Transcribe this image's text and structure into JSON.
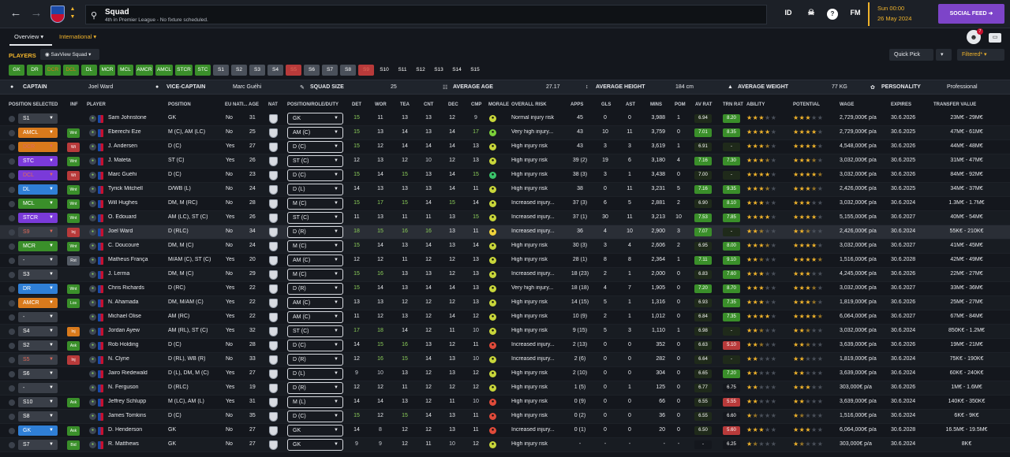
{
  "header": {
    "title": "Squad",
    "subtitle": "4th in Premier League - No fixture scheduled.",
    "icons": {
      "id": "ID",
      "fm": "FM",
      "help": "?"
    },
    "date_line1": "Sun 00:00",
    "date_line2": "26 May 2024",
    "social_feed": "SOCIAL FEED"
  },
  "tabs": {
    "overview": "Overview",
    "international": "International"
  },
  "bar": {
    "players": "PLAYERS",
    "view": "SavView Squad",
    "quick_pick": "Quick Pick",
    "filtered": "Filtered*",
    "notif_count": "7"
  },
  "chips": [
    "GK",
    "DR",
    "DCR",
    "DCL",
    "DL",
    "MCR",
    "MCL",
    "AMCR",
    "AMCL",
    "STCR",
    "STC",
    "S1",
    "S2",
    "S3",
    "S4",
    "S5",
    "S6",
    "S7",
    "S8",
    "S9",
    "S10",
    "S11",
    "S12",
    "S13",
    "S14",
    "S15"
  ],
  "info": {
    "captain_label": "CAPTAIN",
    "captain": "Joel Ward",
    "vice_label": "VICE-CAPTAIN",
    "vice": "Marc Guéhi",
    "squad_size_label": "SQUAD SIZE",
    "squad_size": "25",
    "avg_age_label": "AVERAGE AGE",
    "avg_age": "27.17",
    "avg_height_label": "AVERAGE HEIGHT",
    "avg_height": "184 cm",
    "avg_weight_label": "AVERAGE WEIGHT",
    "avg_weight": "77 KG",
    "personality_label": "PERSONALITY",
    "personality": "Professional"
  },
  "columns": {
    "pos_sel": "POSITION SELECTED",
    "inf": "INF",
    "player": "PLAYER",
    "position": "POSITION",
    "eu": "EU NATI...",
    "age": "AGE",
    "nat": "NAT",
    "role": "POSITION/ROLE/DUTY",
    "det": "DET",
    "wor": "WOR",
    "tea": "TEA",
    "cnt": "CNT",
    "dec": "DEC",
    "cmp": "CMP",
    "morale": "MORALE",
    "risk": "OVERALL RISK",
    "apps": "APPS",
    "gls": "GLS",
    "ast": "AST",
    "mins": "MINS",
    "pom": "POM",
    "avrat": "AV RAT",
    "trnrat": "TRN RAT",
    "ability": "ABILITY",
    "potential": "POTENTIAL",
    "wage": "WAGE",
    "expires": "EXPIRES",
    "value": "TRANSFER VALUE"
  },
  "players": [
    {
      "sel": "S1",
      "selc": "#3a3f48",
      "inf": "",
      "infc": "",
      "name": "Sam Johnstone",
      "pos": "GK",
      "eu": "No",
      "age": "31",
      "role": "GK",
      "det": "15",
      "wor": "11",
      "tea": "13",
      "cnt": "13",
      "dec": "12",
      "cmp": "9",
      "mor": "#c8d63a",
      "risk": "Normal injury risk",
      "apps": "45",
      "gls": "0",
      "ast": "0",
      "mins": "3,988",
      "pom": "1",
      "avr": "6.94",
      "avrc": "#1f2a1a",
      "trn": "8.20",
      "trnc": "#3a8f2a",
      "ab": 3,
      "pot": 3,
      "wage": "2,729,000€ p/a",
      "exp": "30.6.2026",
      "val": "23M€ - 29M€"
    },
    {
      "sel": "AMCL",
      "selc": "#d97a1c",
      "inf": "Wnt",
      "infc": "#3a8f2a",
      "name": "Eberechi Eze",
      "pos": "M (C), AM (LC)",
      "eu": "No",
      "age": "25",
      "role": "AM (C)",
      "det": "15",
      "wor": "13",
      "tea": "14",
      "cnt": "13",
      "dec": "14",
      "cmp": "17",
      "mor": "#7bd13a",
      "risk": "Very high injury...",
      "apps": "43",
      "gls": "10",
      "ast": "11",
      "mins": "3,759",
      "pom": "0",
      "avr": "7.01",
      "avrc": "#3a8f2a",
      "trn": "8.35",
      "trnc": "#3a8f2a",
      "ab": 4,
      "pot": 4,
      "wage": "2,729,000€ p/a",
      "exp": "30.6.2025",
      "val": "47M€ - 61M€"
    },
    {
      "sel": "DCR",
      "selc": "#d97a1c",
      "inf": "Wt",
      "infc": "#b83a3a",
      "name": "J. Andersen",
      "pos": "D (C)",
      "eu": "Yes",
      "age": "27",
      "role": "D (C)",
      "det": "15",
      "wor": "12",
      "tea": "14",
      "cnt": "14",
      "dec": "14",
      "cmp": "13",
      "mor": "#c8d63a",
      "risk": "High injury risk",
      "apps": "43",
      "gls": "3",
      "ast": "3",
      "mins": "3,619",
      "pom": "1",
      "avr": "6.91",
      "avrc": "#1f2a1a",
      "trn": "-",
      "trnc": "#1f2a1a",
      "ab": 3.5,
      "pot": 4,
      "wage": "4,548,000€ p/a",
      "exp": "30.6.2026",
      "val": "44M€ - 48M€"
    },
    {
      "sel": "STC",
      "selc": "#7a3ad9",
      "inf": "Wnt",
      "infc": "#3a8f2a",
      "name": "J. Mateta",
      "pos": "ST (C)",
      "eu": "Yes",
      "age": "26",
      "role": "ST (C)",
      "det": "12",
      "wor": "13",
      "tea": "12",
      "cnt": "10",
      "dec": "12",
      "cmp": "13",
      "mor": "#c8d63a",
      "risk": "High injury risk",
      "apps": "39 (2)",
      "gls": "19",
      "ast": "6",
      "mins": "3,180",
      "pom": "4",
      "avr": "7.16",
      "avrc": "#3a8f2a",
      "trn": "7.30",
      "trnc": "#3a8f2a",
      "ab": 3.5,
      "pot": 3.5,
      "wage": "3,032,000€ p/a",
      "exp": "30.6.2025",
      "val": "31M€ - 47M€"
    },
    {
      "sel": "DCL",
      "selc": "#7a3ad9",
      "inf": "Wt",
      "infc": "#b83a3a",
      "name": "Marc Guéhi",
      "pos": "D (C)",
      "eu": "No",
      "age": "23",
      "role": "D (C)",
      "det": "15",
      "wor": "14",
      "tea": "15",
      "cnt": "13",
      "dec": "14",
      "cmp": "15",
      "mor": "#3ac46a",
      "risk": "High injury risk",
      "apps": "38 (3)",
      "gls": "3",
      "ast": "1",
      "mins": "3,438",
      "pom": "0",
      "avr": "7.00",
      "avrc": "#1f2a1a",
      "trn": "-",
      "trnc": "#1f2a1a",
      "ab": 4,
      "pot": 4.5,
      "wage": "3,032,000€ p/a",
      "exp": "30.6.2026",
      "val": "84M€ - 92M€"
    },
    {
      "sel": "DL",
      "selc": "#2f7fd6",
      "inf": "Wnt",
      "infc": "#3a8f2a",
      "name": "Tyrick Mitchell",
      "pos": "D/WB (L)",
      "eu": "No",
      "age": "24",
      "role": "D (L)",
      "det": "14",
      "wor": "13",
      "tea": "13",
      "cnt": "13",
      "dec": "14",
      "cmp": "11",
      "mor": "#c8d63a",
      "risk": "High injury risk",
      "apps": "38",
      "gls": "0",
      "ast": "11",
      "mins": "3,231",
      "pom": "5",
      "avr": "7.16",
      "avrc": "#3a8f2a",
      "trn": "9.35",
      "trnc": "#3a8f2a",
      "ab": 3.5,
      "pot": 3.5,
      "wage": "2,426,000€ p/a",
      "exp": "30.6.2025",
      "val": "34M€ - 37M€"
    },
    {
      "sel": "MCL",
      "selc": "#3a8f2a",
      "inf": "Wnt",
      "infc": "#3a8f2a",
      "name": "Will Hughes",
      "pos": "DM, M (RC)",
      "eu": "No",
      "age": "28",
      "role": "M (C)",
      "det": "15",
      "wor": "17",
      "tea": "15",
      "cnt": "14",
      "dec": "15",
      "cmp": "14",
      "mor": "#c8d63a",
      "risk": "Increased injury...",
      "apps": "37 (3)",
      "gls": "6",
      "ast": "5",
      "mins": "2,881",
      "pom": "2",
      "avr": "6.90",
      "avrc": "#1f2a1a",
      "trn": "8.10",
      "trnc": "#3a8f2a",
      "ab": 3,
      "pot": 3,
      "wage": "3,032,000€ p/a",
      "exp": "30.6.2024",
      "val": "1.3M€ - 1.7M€"
    },
    {
      "sel": "STCR",
      "selc": "#7a3ad9",
      "inf": "Wnt",
      "infc": "#3a8f2a",
      "name": "O. Edouard",
      "pos": "AM (LC), ST (C)",
      "eu": "Yes",
      "age": "26",
      "role": "ST (C)",
      "det": "11",
      "wor": "13",
      "tea": "11",
      "cnt": "11",
      "dec": "13",
      "cmp": "15",
      "mor": "#c8d63a",
      "risk": "Increased injury...",
      "apps": "37 (1)",
      "gls": "30",
      "ast": "11",
      "mins": "3,213",
      "pom": "10",
      "avr": "7.53",
      "avrc": "#3a8f2a",
      "trn": "7.85",
      "trnc": "#3a8f2a",
      "ab": 4,
      "pot": 4,
      "wage": "5,155,000€ p/a",
      "exp": "30.6.2027",
      "val": "40M€ - 54M€"
    },
    {
      "sel": "S9",
      "selc": "#3a3f48",
      "inf": "Inj",
      "infc": "#b83a3a",
      "name": "Joel Ward",
      "pos": "D (RLC)",
      "eu": "No",
      "age": "34",
      "role": "D (R)",
      "det": "18",
      "wor": "15",
      "tea": "16",
      "cnt": "16",
      "dec": "13",
      "cmp": "11",
      "mor": "#f0d33b",
      "risk": "Increased injury...",
      "apps": "36",
      "gls": "4",
      "ast": "10",
      "mins": "2,900",
      "pom": "3",
      "avr": "7.07",
      "avrc": "#3a8f2a",
      "trn": "-",
      "trnc": "#1f2a1a",
      "ab": 2.5,
      "pot": 2.5,
      "wage": "2,426,000€ p/a",
      "exp": "30.6.2024",
      "val": "55K€ - 210K€"
    },
    {
      "sel": "MCR",
      "selc": "#3a8f2a",
      "inf": "Wnt",
      "infc": "#3a8f2a",
      "name": "C. Doucouré",
      "pos": "DM, M (C)",
      "eu": "No",
      "age": "24",
      "role": "M (C)",
      "det": "15",
      "wor": "14",
      "tea": "13",
      "cnt": "14",
      "dec": "13",
      "cmp": "14",
      "mor": "#c8d63a",
      "risk": "High injury risk",
      "apps": "30 (3)",
      "gls": "3",
      "ast": "4",
      "mins": "2,606",
      "pom": "2",
      "avr": "6.95",
      "avrc": "#1f2a1a",
      "trn": "8.00",
      "trnc": "#3a8f2a",
      "ab": 3.5,
      "pot": 4,
      "wage": "3,032,000€ p/a",
      "exp": "30.6.2027",
      "val": "41M€ - 45M€"
    },
    {
      "sel": "-",
      "selc": "#3a3f48",
      "inf": "Rst",
      "infc": "#555c66",
      "name": "Matheus França",
      "pos": "M/AM (C), ST (C)",
      "eu": "Yes",
      "age": "20",
      "role": "AM (C)",
      "det": "12",
      "wor": "12",
      "tea": "11",
      "cnt": "12",
      "dec": "12",
      "cmp": "13",
      "mor": "#c8d63a",
      "risk": "High injury risk",
      "apps": "28 (1)",
      "gls": "8",
      "ast": "8",
      "mins": "2,364",
      "pom": "1",
      "avr": "7.11",
      "avrc": "#3a8f2a",
      "trn": "9.10",
      "trnc": "#3a8f2a",
      "ab": 2.5,
      "pot": 4.5,
      "wage": "1,516,000€ p/a",
      "exp": "30.6.2028",
      "val": "42M€ - 49M€"
    },
    {
      "sel": "S3",
      "selc": "#3a3f48",
      "inf": "",
      "infc": "",
      "name": "J. Lerma",
      "pos": "DM, M (C)",
      "eu": "No",
      "age": "29",
      "role": "M (C)",
      "det": "15",
      "wor": "16",
      "tea": "13",
      "cnt": "13",
      "dec": "12",
      "cmp": "13",
      "mor": "#c8d63a",
      "risk": "Increased injury...",
      "apps": "18 (23)",
      "gls": "2",
      "ast": "1",
      "mins": "2,000",
      "pom": "0",
      "avr": "6.83",
      "avrc": "#1f2a1a",
      "trn": "7.60",
      "trnc": "#3a8f2a",
      "ab": 3,
      "pot": 3,
      "wage": "4,245,000€ p/a",
      "exp": "30.6.2026",
      "val": "22M€ - 27M€"
    },
    {
      "sel": "DR",
      "selc": "#2f7fd6",
      "inf": "Wnt",
      "infc": "#3a8f2a",
      "name": "Chris Richards",
      "pos": "D (RC)",
      "eu": "Yes",
      "age": "22",
      "role": "D (R)",
      "det": "15",
      "wor": "14",
      "tea": "13",
      "cnt": "14",
      "dec": "14",
      "cmp": "13",
      "mor": "#c8d63a",
      "risk": "Very high injury...",
      "apps": "18 (18)",
      "gls": "4",
      "ast": "7",
      "mins": "1,905",
      "pom": "0",
      "avr": "7.20",
      "avrc": "#3a8f2a",
      "trn": "8.70",
      "trnc": "#3a8f2a",
      "ab": 3,
      "pot": 3.5,
      "wage": "3,032,000€ p/a",
      "exp": "30.6.2027",
      "val": "33M€ - 36M€"
    },
    {
      "sel": "AMCR",
      "selc": "#d97a1c",
      "inf": "Los",
      "infc": "#3a8f2a",
      "name": "N. Ahamada",
      "pos": "DM, M/AM (C)",
      "eu": "Yes",
      "age": "22",
      "role": "AM (C)",
      "det": "13",
      "wor": "13",
      "tea": "12",
      "cnt": "12",
      "dec": "12",
      "cmp": "13",
      "mor": "#c8d63a",
      "risk": "High injury risk",
      "apps": "14 (15)",
      "gls": "5",
      "ast": "1",
      "mins": "1,316",
      "pom": "0",
      "avr": "6.93",
      "avrc": "#1f2a1a",
      "trn": "7.35",
      "trnc": "#3a8f2a",
      "ab": 3,
      "pot": 3.5,
      "wage": "1,819,000€ p/a",
      "exp": "30.6.2026",
      "val": "25M€ - 27M€"
    },
    {
      "sel": "-",
      "selc": "#3a3f48",
      "inf": "",
      "infc": "",
      "name": "Michael Olise",
      "pos": "AM (RC)",
      "eu": "Yes",
      "age": "22",
      "role": "AM (C)",
      "det": "11",
      "wor": "12",
      "tea": "13",
      "cnt": "12",
      "dec": "14",
      "cmp": "12",
      "mor": "#c8d63a",
      "risk": "High injury risk",
      "apps": "10 (9)",
      "gls": "2",
      "ast": "1",
      "mins": "1,012",
      "pom": "0",
      "avr": "6.84",
      "avrc": "#1f2a1a",
      "trn": "7.35",
      "trnc": "#3a8f2a",
      "ab": 4,
      "pot": 4.5,
      "wage": "6,064,000€ p/a",
      "exp": "30.6.2027",
      "val": "67M€ - 84M€"
    },
    {
      "sel": "S4",
      "selc": "#3a3f48",
      "inf": "Inj",
      "infc": "#d97a1c",
      "name": "Jordan Ayew",
      "pos": "AM (RL), ST (C)",
      "eu": "Yes",
      "age": "32",
      "role": "ST (C)",
      "det": "17",
      "wor": "18",
      "tea": "14",
      "cnt": "12",
      "dec": "11",
      "cmp": "10",
      "mor": "#c8d63a",
      "risk": "High injury risk",
      "apps": "9 (15)",
      "gls": "5",
      "ast": "3",
      "mins": "1,110",
      "pom": "1",
      "avr": "6.98",
      "avrc": "#1f2a1a",
      "trn": "-",
      "trnc": "#1f2a1a",
      "ab": 2.5,
      "pot": 2.5,
      "wage": "3,032,000€ p/a",
      "exp": "30.6.2024",
      "val": "850K€ - 1.2M€"
    },
    {
      "sel": "S2",
      "selc": "#3a3f48",
      "inf": "Ask",
      "infc": "#3a8f2a",
      "name": "Rob Holding",
      "pos": "D (C)",
      "eu": "No",
      "age": "28",
      "role": "D (C)",
      "det": "14",
      "wor": "15",
      "tea": "16",
      "cnt": "13",
      "dec": "12",
      "cmp": "11",
      "mor": "#e04a3a",
      "risk": "Increased injury...",
      "apps": "2 (13)",
      "gls": "0",
      "ast": "0",
      "mins": "352",
      "pom": "0",
      "avr": "6.63",
      "avrc": "#1f2a1a",
      "trn": "5.10",
      "trnc": "#b83a3a",
      "ab": 2.5,
      "pot": 2.5,
      "wage": "3,639,000€ p/a",
      "exp": "30.6.2026",
      "val": "19M€ - 21M€"
    },
    {
      "sel": "S5",
      "selc": "#3a3f48",
      "inf": "Inj",
      "infc": "#b83a3a",
      "name": "N. Clyne",
      "pos": "D (RL), WB (R)",
      "eu": "No",
      "age": "33",
      "role": "D (R)",
      "det": "12",
      "wor": "16",
      "tea": "15",
      "cnt": "14",
      "dec": "13",
      "cmp": "10",
      "mor": "#c8d63a",
      "risk": "Increased injury...",
      "apps": "2 (6)",
      "gls": "0",
      "ast": "0",
      "mins": "282",
      "pom": "0",
      "avr": "6.64",
      "avrc": "#1f2a1a",
      "trn": "-",
      "trnc": "#1f2a1a",
      "ab": 2,
      "pot": 2,
      "wage": "1,819,000€ p/a",
      "exp": "30.6.2024",
      "val": "75K€ - 190K€"
    },
    {
      "sel": "S6",
      "selc": "#3a3f48",
      "inf": "",
      "infc": "",
      "name": "Jairo Riedewald",
      "pos": "D (L), DM, M (C)",
      "eu": "Yes",
      "age": "27",
      "role": "D (L)",
      "det": "9",
      "wor": "10",
      "tea": "13",
      "cnt": "12",
      "dec": "13",
      "cmp": "12",
      "mor": "#c8d63a",
      "risk": "High injury risk",
      "apps": "2 (10)",
      "gls": "0",
      "ast": "0",
      "mins": "304",
      "pom": "0",
      "avr": "6.65",
      "avrc": "#1f2a1a",
      "trn": "7.20",
      "trnc": "#3a8f2a",
      "ab": 2,
      "pot": 2,
      "wage": "3,639,000€ p/a",
      "exp": "30.6.2024",
      "val": "60K€ - 240K€"
    },
    {
      "sel": "-",
      "selc": "#3a3f48",
      "inf": "",
      "infc": "",
      "name": "N. Ferguson",
      "pos": "D (RLC)",
      "eu": "Yes",
      "age": "19",
      "role": "D (R)",
      "det": "12",
      "wor": "12",
      "tea": "11",
      "cnt": "12",
      "dec": "12",
      "cmp": "12",
      "mor": "#c8d63a",
      "risk": "High injury risk",
      "apps": "1 (5)",
      "gls": "0",
      "ast": "1",
      "mins": "125",
      "pom": "0",
      "avr": "6.77",
      "avrc": "#1f2a1a",
      "trn": "6.75",
      "trnc": "#14171d",
      "ab": 2,
      "pot": 3,
      "wage": "303,000€ p/a",
      "exp": "30.6.2026",
      "val": "1M€ - 1.6M€"
    },
    {
      "sel": "S10",
      "selc": "#3a3f48",
      "inf": "Ask",
      "infc": "#3a8f2a",
      "name": "Jeffrey Schlupp",
      "pos": "M (LC), AM (L)",
      "eu": "Yes",
      "age": "31",
      "role": "M (L)",
      "det": "14",
      "wor": "14",
      "tea": "13",
      "cnt": "12",
      "dec": "11",
      "cmp": "10",
      "mor": "#e04a3a",
      "risk": "High injury risk",
      "apps": "0 (9)",
      "gls": "0",
      "ast": "0",
      "mins": "66",
      "pom": "0",
      "avr": "6.55",
      "avrc": "#1f2a1a",
      "trn": "5.55",
      "trnc": "#b83a3a",
      "ab": 2,
      "pot": 2,
      "wage": "3,639,000€ p/a",
      "exp": "30.6.2024",
      "val": "140K€ - 350K€"
    },
    {
      "sel": "S8",
      "selc": "#3a3f48",
      "inf": "",
      "infc": "",
      "name": "James Tomkins",
      "pos": "D (C)",
      "eu": "No",
      "age": "35",
      "role": "D (C)",
      "det": "15",
      "wor": "12",
      "tea": "15",
      "cnt": "14",
      "dec": "13",
      "cmp": "11",
      "mor": "#e04a3a",
      "risk": "High injury risk",
      "apps": "0 (2)",
      "gls": "0",
      "ast": "0",
      "mins": "36",
      "pom": "0",
      "avr": "6.55",
      "avrc": "#1f2a1a",
      "trn": "6.60",
      "trnc": "#14171d",
      "ab": 1.5,
      "pot": 1.5,
      "wage": "1,516,000€ p/a",
      "exp": "30.6.2024",
      "val": "6K€ - 9K€"
    },
    {
      "sel": "GK",
      "selc": "#2f7fd6",
      "inf": "Ask",
      "infc": "#3a8f2a",
      "name": "D. Henderson",
      "pos": "GK",
      "eu": "No",
      "age": "27",
      "role": "GK",
      "det": "14",
      "wor": "8",
      "tea": "12",
      "cnt": "12",
      "dec": "13",
      "cmp": "11",
      "mor": "#e04a3a",
      "risk": "Increased injury...",
      "apps": "0 (1)",
      "gls": "0",
      "ast": "0",
      "mins": "20",
      "pom": "0",
      "avr": "6.50",
      "avrc": "#1f2a1a",
      "trn": "5.60",
      "trnc": "#b83a3a",
      "ab": 3,
      "pot": 3,
      "wage": "6,064,000€ p/a",
      "exp": "30.6.2028",
      "val": "16.5M€ - 19.5M€"
    },
    {
      "sel": "S7",
      "selc": "#3a3f48",
      "inf": "Bid",
      "infc": "#3a8f2a",
      "name": "R. Matthews",
      "pos": "GK",
      "eu": "No",
      "age": "27",
      "role": "GK",
      "det": "9",
      "wor": "9",
      "tea": "12",
      "cnt": "11",
      "dec": "10",
      "cmp": "12",
      "mor": "#c8d63a",
      "risk": "High injury risk",
      "apps": "-",
      "gls": "-",
      "ast": "-",
      "mins": "-",
      "pom": "-",
      "avr": "-",
      "avrc": "#14171d",
      "trn": "6.25",
      "trnc": "#14171d",
      "ab": 1.5,
      "pot": 1.5,
      "wage": "303,000€ p/a",
      "exp": "30.6.2024",
      "val": "8K€"
    }
  ]
}
